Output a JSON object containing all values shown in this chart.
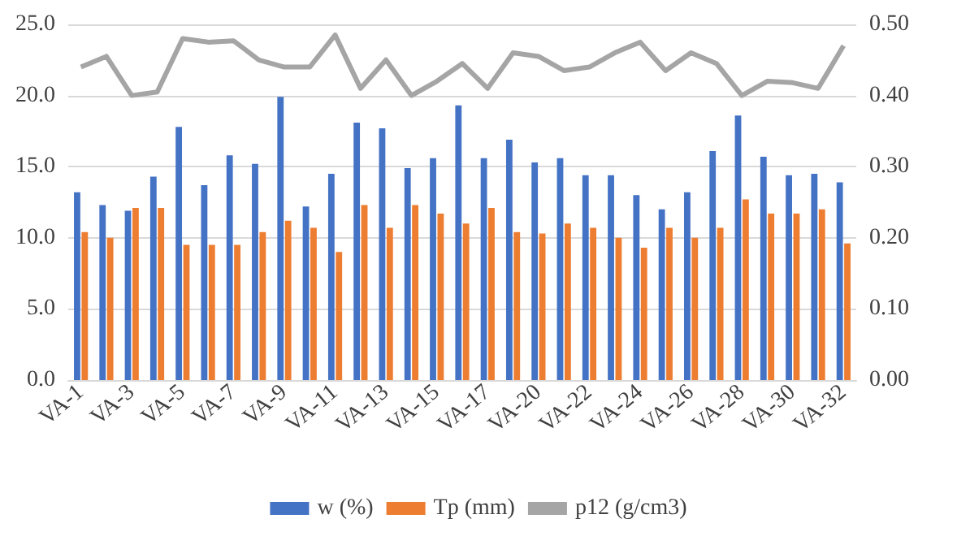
{
  "chart_data": {
    "type": "bar",
    "categories": [
      "VA-1",
      null,
      "VA-3",
      null,
      "VA-5",
      null,
      "VA-7",
      null,
      "VA-9",
      null,
      "VA-11",
      null,
      "VA-13",
      null,
      "VA-15",
      null,
      "VA-17",
      null,
      "VA-20",
      null,
      "VA-22",
      null,
      "VA-24",
      null,
      "VA-26",
      null,
      "VA-28",
      null,
      "VA-30",
      null,
      "VA-32"
    ],
    "series": [
      {
        "name": "w (%)",
        "color": "#4472c4",
        "values": [
          13.2,
          12.3,
          11.9,
          14.3,
          17.8,
          13.7,
          15.8,
          15.2,
          19.9,
          12.2,
          14.5,
          18.1,
          17.7,
          14.9,
          15.6,
          19.3,
          15.6,
          16.9,
          15.3,
          15.6,
          14.4,
          14.4,
          13.0,
          12.0,
          13.2,
          16.1,
          18.6,
          15.7,
          14.4,
          14.5,
          13.9
        ]
      },
      {
        "name": "Tp (mm)",
        "color": "#ed7d31",
        "values": [
          10.4,
          10.0,
          12.1,
          12.1,
          9.5,
          9.5,
          9.5,
          10.4,
          11.2,
          10.7,
          9.0,
          12.3,
          10.7,
          12.3,
          11.7,
          11.0,
          12.1,
          10.4,
          10.3,
          11.0,
          10.7,
          10.0,
          9.3,
          10.7,
          10.0,
          10.7,
          12.7,
          11.7,
          11.7,
          12.0,
          9.6
        ]
      },
      {
        "name": "p12 (g/cm3)",
        "color": "#a5a5a5",
        "type": "line",
        "axis": "y2",
        "values": [
          0.44,
          0.455,
          0.4,
          0.405,
          0.48,
          0.475,
          0.477,
          0.45,
          0.44,
          0.44,
          0.485,
          0.41,
          0.45,
          0.4,
          0.42,
          0.445,
          0.41,
          0.46,
          0.455,
          0.435,
          0.44,
          0.46,
          0.475,
          0.435,
          0.46,
          0.445,
          0.4,
          0.42,
          0.418,
          0.41,
          0.47
        ]
      }
    ],
    "ylim": [
      0,
      25
    ],
    "yticks": [
      {
        "value": 0,
        "label": "0.0"
      },
      {
        "value": 5,
        "label": "5.0"
      },
      {
        "value": 10,
        "label": "10.0"
      },
      {
        "value": 15,
        "label": "15.0"
      },
      {
        "value": 20,
        "label": "20.0"
      },
      {
        "value": 25,
        "label": "25.0"
      }
    ],
    "y2lim": [
      0,
      0.5
    ],
    "y2ticks": [
      {
        "value": 0,
        "label": "0.00"
      },
      {
        "value": 0.1,
        "label": "0.10"
      },
      {
        "value": 0.2,
        "label": "0.20"
      },
      {
        "value": 0.3,
        "label": "0.30"
      },
      {
        "value": 0.4,
        "label": "0.40"
      },
      {
        "value": 0.5,
        "label": "0.50"
      }
    ],
    "grid": "y",
    "legend": "bottom",
    "marker": "none"
  }
}
